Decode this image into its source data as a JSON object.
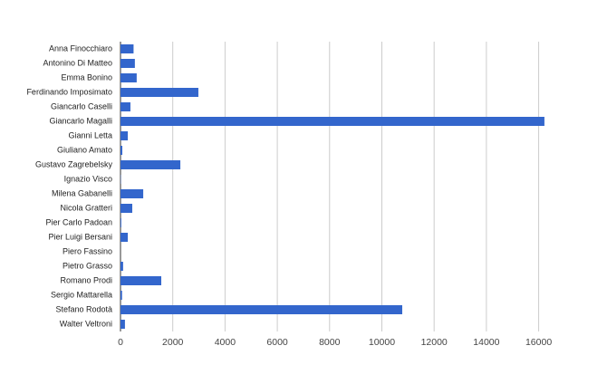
{
  "chart_data": {
    "type": "hbar",
    "categories": [
      "Anna Finocchiaro",
      "Antonino Di Matteo",
      "Emma Bonino",
      "Ferdinando Imposimato",
      "Giancarlo Caselli",
      "Giancarlo Magalli",
      "Gianni Letta",
      "Giuliano Amato",
      "Gustavo Zagrebelsky",
      "Ignazio Visco",
      "Milena Gabanelli",
      "Nicola Gratteri",
      "Pier Carlo Padoan",
      "Pier Luigi Bersani",
      "Piero Fassino",
      "Pietro Grasso",
      "Romano Prodi",
      "Sergio Mattarella",
      "Stefano Rodotà",
      "Walter Veltroni"
    ],
    "values": [
      500,
      550,
      620,
      2980,
      380,
      16220,
      280,
      70,
      2290,
      10,
      870,
      450,
      30,
      280,
      0,
      100,
      1560,
      60,
      10780,
      170
    ],
    "color": "#3366cc",
    "xlim": [
      0,
      16500
    ],
    "xticks": [
      0,
      2000,
      4000,
      6000,
      8000,
      10000,
      12000,
      14000,
      16000
    ],
    "grid": true
  }
}
